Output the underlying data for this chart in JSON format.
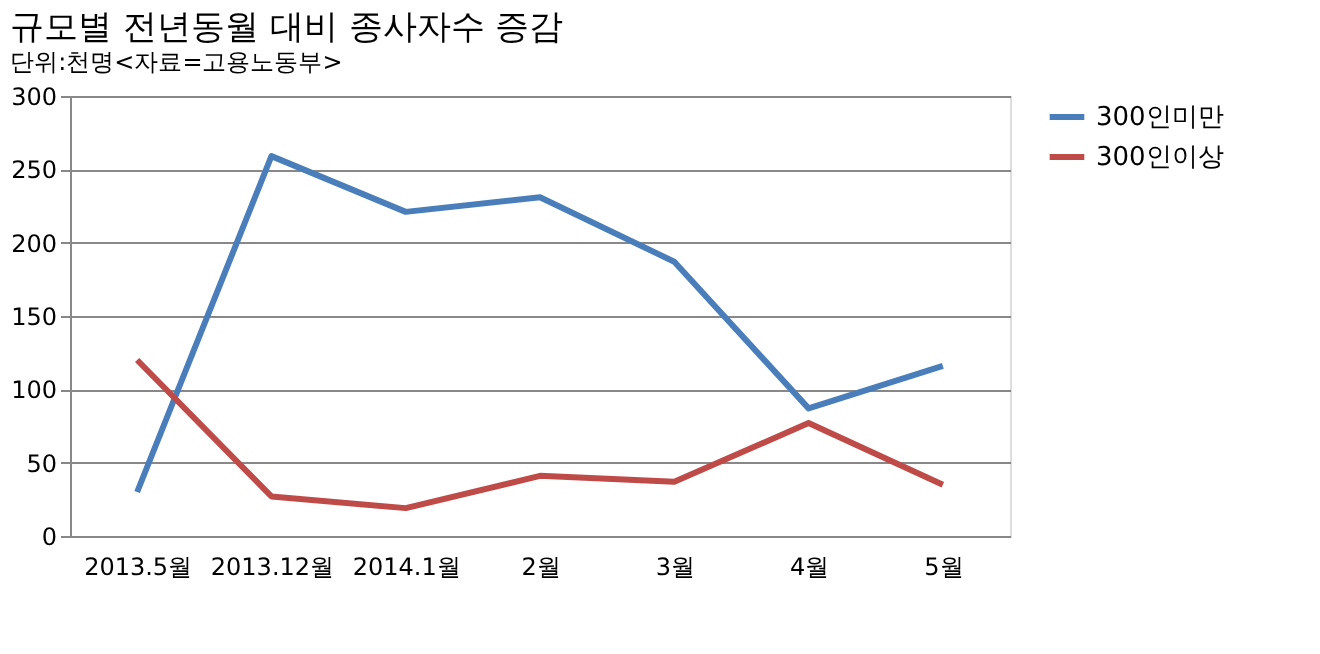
{
  "chart_data": {
    "type": "line",
    "title": "규모별 전년동월 대비 종사자수 증감",
    "subtitle": "단위:천명<자료=고용노동부>",
    "categories": [
      "2013.5월",
      "2013.12월",
      "2014.1월",
      "2월",
      "3월",
      "4월",
      "5월"
    ],
    "series": [
      {
        "name": "300인미만",
        "color": "#4a7ebb",
        "values": [
          30,
          259,
          221,
          231,
          187,
          87,
          116
        ]
      },
      {
        "name": "300인이상",
        "color": "#be4b48",
        "values": [
          120,
          27,
          19,
          41,
          37,
          77,
          35
        ]
      }
    ],
    "ylim": [
      0,
      300
    ],
    "yticks": [
      0,
      50,
      100,
      150,
      200,
      250,
      300
    ],
    "grid": "y",
    "legend": "right",
    "marker": "none",
    "line_style": "solid"
  }
}
